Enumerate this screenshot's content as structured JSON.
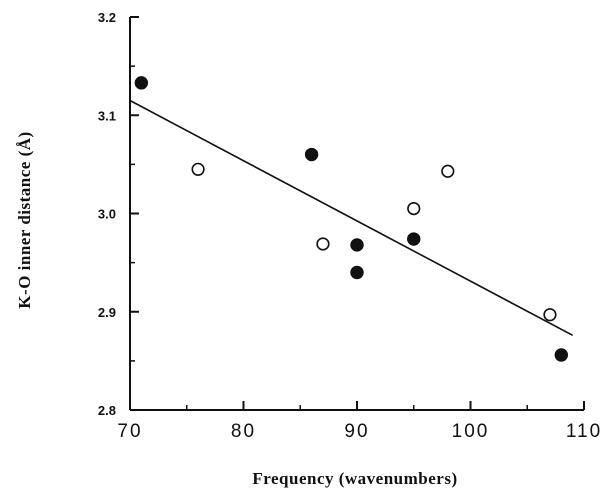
{
  "chart_data": {
    "type": "scatter",
    "title": "",
    "xlabel": "Frequency  (wavenumbers)",
    "ylabel": "K-O inner distance (Å)",
    "xlim": [
      70,
      110
    ],
    "ylim": [
      2.8,
      3.2
    ],
    "xticks": [
      70,
      80,
      90,
      100,
      110
    ],
    "yticks": [
      2.8,
      2.9,
      3.0,
      3.1,
      3.2
    ],
    "xtick_labels": [
      "70",
      "80",
      "90",
      "100",
      "110"
    ],
    "ytick_labels": [
      "2.8",
      "2.9",
      "3.0",
      "3.1",
      "3.2"
    ],
    "grid": false,
    "legend": "none",
    "series": [
      {
        "marker": "filled-circle",
        "points": [
          {
            "x": 71,
            "y": 3.133
          },
          {
            "x": 86,
            "y": 3.06
          },
          {
            "x": 90,
            "y": 2.968
          },
          {
            "x": 90,
            "y": 2.94
          },
          {
            "x": 95,
            "y": 2.974
          },
          {
            "x": 108,
            "y": 2.856
          }
        ]
      },
      {
        "marker": "open-circle",
        "points": [
          {
            "x": 76,
            "y": 3.045
          },
          {
            "x": 87,
            "y": 2.969
          },
          {
            "x": 95,
            "y": 3.005
          },
          {
            "x": 98,
            "y": 3.043
          },
          {
            "x": 107,
            "y": 2.897
          }
        ]
      }
    ],
    "fit_line": {
      "x": [
        70,
        109
      ],
      "y": [
        3.115,
        2.876
      ]
    },
    "colors": {
      "ink": "#111111",
      "background": "#ffffff"
    }
  }
}
